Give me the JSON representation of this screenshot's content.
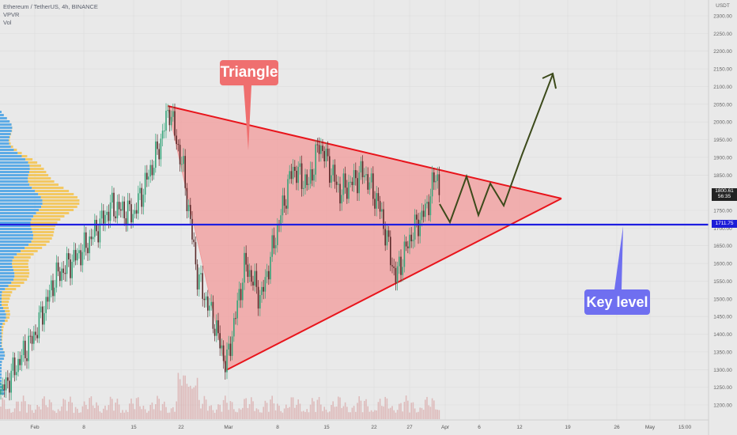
{
  "legend": {
    "symbol": "Ethereum / TetherUS, 4h, BINANCE",
    "indicator_1": "VPVR",
    "indicator_2": "Vol"
  },
  "annotations": {
    "triangle_label": "Triangle",
    "key_level_label": "Key level"
  },
  "price_axis": {
    "currency": "USDT",
    "ticks": [
      "2300.00",
      "2250.00",
      "2200.00",
      "2150.00",
      "2100.00",
      "2050.00",
      "2000.00",
      "1950.00",
      "1900.00",
      "1850.00",
      "1750.00",
      "1700.00",
      "1650.00",
      "1600.00",
      "1550.00",
      "1500.00",
      "1450.00",
      "1400.00",
      "1350.00",
      "1300.00",
      "1250.00",
      "1200.00"
    ],
    "current_price": "1800.61",
    "countdown": "56:35",
    "key_level_value": "1711.75"
  },
  "time_axis": {
    "ticks": [
      "Feb",
      "8",
      "15",
      "22",
      "Mar",
      "8",
      "15",
      "22",
      "27",
      "Apr",
      "6",
      "12",
      "19",
      "26",
      "May",
      "15:00"
    ]
  },
  "colors": {
    "background": "#e9e9e9",
    "triangle_fill": "#f29a9a",
    "triangle_line": "#e8141b",
    "key_level_line": "#1e1ee0",
    "projection_line": "#3c4a1b",
    "candle_up": "#36a47a",
    "candle_down": "#5b2a2a",
    "vpvr_blue": "#3a9be5",
    "vpvr_yellow": "#f5c24a"
  },
  "chart_data": {
    "type": "candlestick",
    "y_unit": "USDT",
    "ylim": [
      1180,
      2320
    ],
    "key_level": 1711.75,
    "current_price": 1800.61,
    "triangle": {
      "apex_high": 2040,
      "apex_low": 1300,
      "upper_end": 1780,
      "lower_end": 1780
    },
    "path_points": [
      [
        "Feb",
        1230
      ],
      [
        "8",
        1600
      ],
      [
        "15",
        1800
      ],
      [
        "22",
        2040
      ],
      [
        "Mar",
        1320
      ],
      [
        "8",
        1870
      ],
      [
        "15",
        1940
      ],
      [
        "22",
        1820
      ],
      [
        "27",
        1560
      ],
      [
        "Apr",
        1860
      ]
    ]
  }
}
